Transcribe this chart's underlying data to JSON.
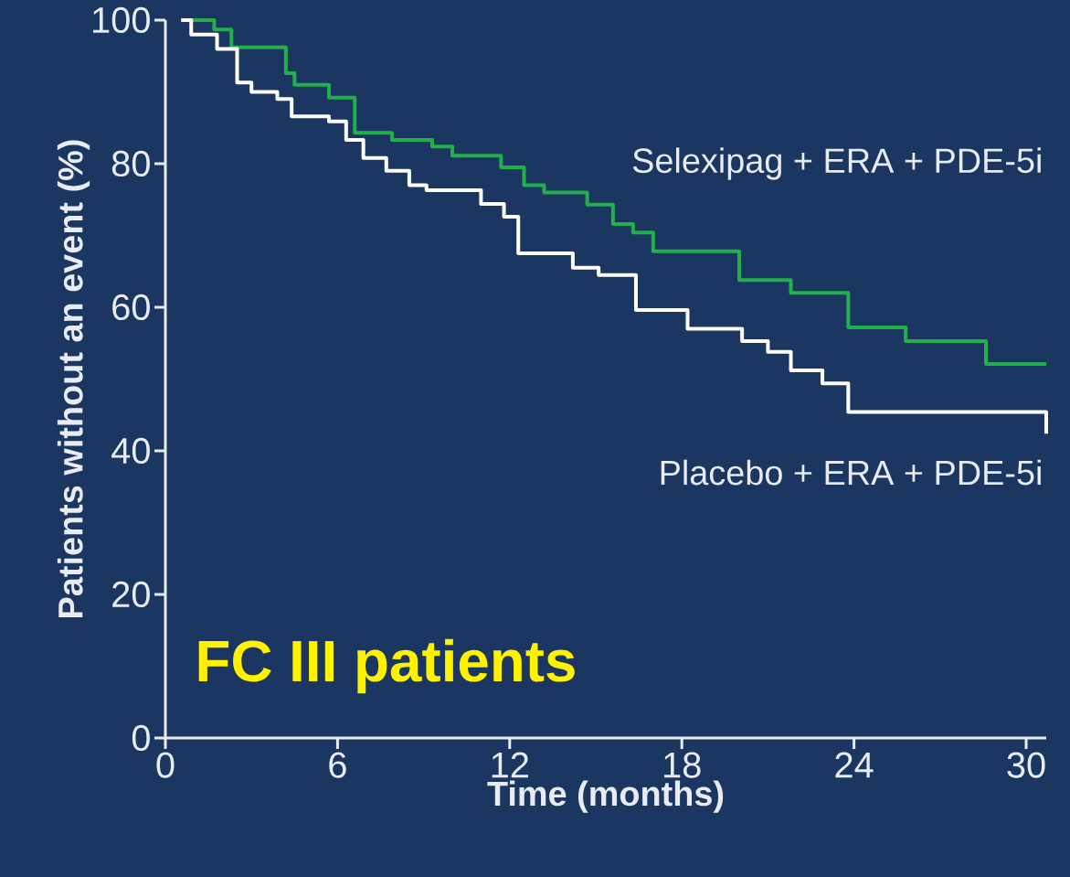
{
  "chart_data": {
    "type": "step",
    "xlabel": "Time (months)",
    "ylabel": "Patients without an event (%)",
    "annotations": [
      "FC III patients"
    ],
    "xlim": [
      0,
      30.7
    ],
    "xticks": [
      0,
      6,
      12,
      18,
      24,
      30
    ],
    "ylim": [
      0,
      100
    ],
    "yticks": [
      0,
      20,
      40,
      60,
      80,
      100
    ],
    "series": [
      {
        "name": "Selexipag + ERA + PDE-5i",
        "color": "#22b04b",
        "x": [
          0.6,
          1.7,
          2.3,
          4.2,
          4.5,
          5.7,
          6.6,
          7.9,
          9.3,
          10,
          11.7,
          12.5,
          13.2,
          14.7,
          15.6,
          16.3,
          17,
          20,
          21.8,
          23.8,
          25.8,
          28.6,
          30.7
        ],
        "values": [
          100,
          98.7,
          96.2,
          92.6,
          91,
          89.2,
          84.3,
          83.3,
          82.4,
          81.1,
          79.5,
          77,
          76,
          74.3,
          71.6,
          70.4,
          67.8,
          63.8,
          62,
          57.2,
          55.3,
          52.1,
          52.1
        ]
      },
      {
        "name": "Placebo + ERA + PDE-5i",
        "color": "#ffffff",
        "x": [
          0.55,
          0.9,
          1.8,
          2.5,
          3,
          3.9,
          4.4,
          5.7,
          6.3,
          6.9,
          7.7,
          8.5,
          9.1,
          11,
          11.8,
          12.3,
          14.2,
          15.1,
          16.4,
          18.2,
          20.1,
          21,
          21.8,
          22.9,
          23.8,
          30.6,
          30.7
        ],
        "values": [
          100,
          98,
          96,
          91.3,
          90,
          89,
          86.6,
          85.9,
          83.3,
          80.8,
          79,
          77,
          76.3,
          74.4,
          72.6,
          67.5,
          65.5,
          64.5,
          59.6,
          57,
          55.3,
          53.8,
          51.2,
          49.4,
          45.4,
          45.4,
          42.4
        ]
      }
    ]
  }
}
